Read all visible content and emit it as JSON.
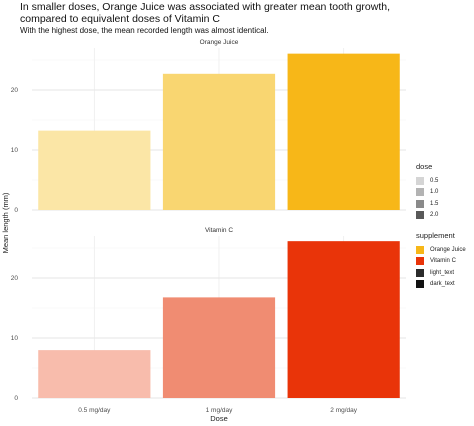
{
  "header": {
    "title_line1": "In smaller doses, Orange Juice was associated with greater mean tooth growth,",
    "title_line2": "compared to equivalent doses of Vitamin C",
    "subtitle": "With the highest dose, the mean recorded length was almost identical."
  },
  "chart_data": {
    "type": "bar",
    "xlabel": "Dose",
    "ylabel": "Mean length (mm)",
    "categories": [
      "0.5 mg/day",
      "1 mg/day",
      "2 mg/day"
    ],
    "ylim": [
      0,
      27
    ],
    "yticks": [
      0,
      10,
      20
    ],
    "grid": true,
    "facets": [
      {
        "label": "Orange Juice",
        "values": [
          13.23,
          22.7,
          26.06
        ],
        "colors": [
          "#fbe6a6",
          "#f9d671",
          "#f7b718"
        ]
      },
      {
        "label": "Vitamin C",
        "values": [
          7.98,
          16.77,
          26.14
        ],
        "colors": [
          "#f8bcac",
          "#f08c72",
          "#e93409"
        ]
      }
    ],
    "legend": {
      "placement": "right",
      "dose": {
        "title": "dose",
        "items": [
          {
            "label": "0.5",
            "color": "#d5d5d5"
          },
          {
            "label": "1.0",
            "color": "#b3b3b3"
          },
          {
            "label": "1.5",
            "color": "#8a8a8a"
          },
          {
            "label": "2.0",
            "color": "#595959"
          }
        ]
      },
      "supplement": {
        "title": "supplement",
        "items": [
          {
            "label": "Orange Juice",
            "color": "#f7b718"
          },
          {
            "label": "Vitamin C",
            "color": "#e93409"
          },
          {
            "label": "light_text",
            "color": "#2b2b2b"
          },
          {
            "label": "dark_text",
            "color": "#111111"
          }
        ]
      }
    }
  }
}
